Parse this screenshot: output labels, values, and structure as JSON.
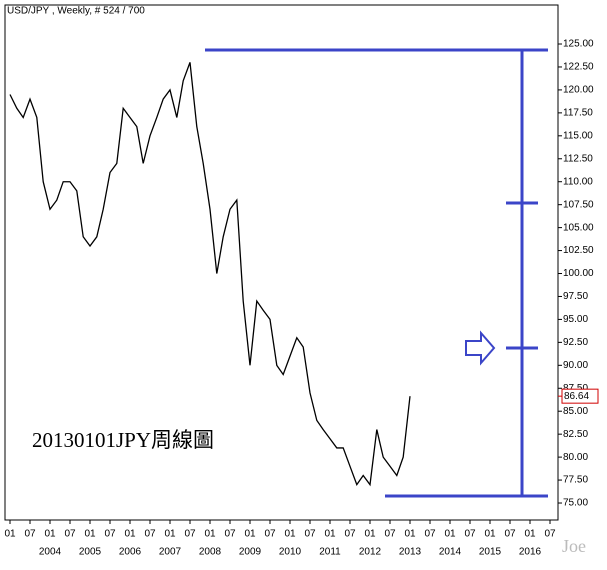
{
  "chart_data": {
    "type": "line",
    "title": "USD/JPY , Weekly, # 524 / 700",
    "annotation": "20130101JPY周線圖",
    "watermark": "Joe",
    "last_value": 86.64,
    "last_value_color": "#d00000",
    "series": [
      {
        "name": "USD/JPY",
        "color": "#000000",
        "x": [
          2003.0,
          2003.17,
          2003.33,
          2003.5,
          2003.67,
          2003.83,
          2004.0,
          2004.17,
          2004.33,
          2004.5,
          2004.67,
          2004.83,
          2005.0,
          2005.17,
          2005.33,
          2005.5,
          2005.67,
          2005.83,
          2006.0,
          2006.17,
          2006.33,
          2006.5,
          2006.67,
          2006.83,
          2007.0,
          2007.17,
          2007.33,
          2007.5,
          2007.67,
          2007.83,
          2008.0,
          2008.17,
          2008.33,
          2008.5,
          2008.67,
          2008.83,
          2009.0,
          2009.17,
          2009.33,
          2009.5,
          2009.67,
          2009.83,
          2010.0,
          2010.17,
          2010.33,
          2010.5,
          2010.67,
          2010.83,
          2011.0,
          2011.17,
          2011.33,
          2011.5,
          2011.67,
          2011.83,
          2012.0,
          2012.17,
          2012.33,
          2012.5,
          2012.67,
          2012.83,
          2013.0
        ],
        "values": [
          119.5,
          118,
          117,
          119,
          117,
          110,
          107,
          108,
          110,
          110,
          109,
          104,
          103,
          104,
          107,
          111,
          112,
          118,
          117,
          116,
          112,
          115,
          117,
          119,
          120,
          117,
          121,
          123,
          116,
          112,
          107,
          100,
          104,
          107,
          108,
          97,
          90,
          97,
          96,
          95,
          90,
          89,
          91,
          93,
          92,
          87,
          84,
          83,
          82,
          81,
          81,
          79,
          77,
          78,
          77,
          83,
          80,
          79,
          78,
          80,
          86.64
        ]
      }
    ],
    "xlim": [
      2002.875,
      2016.7
    ],
    "ylim": [
      73.15,
      129.25
    ],
    "yticks": [
      {
        "value": 75,
        "label": "75.00"
      },
      {
        "value": 77.5,
        "label": "77.50"
      },
      {
        "value": 80,
        "label": "80.00"
      },
      {
        "value": 82.5,
        "label": "82.50"
      },
      {
        "value": 85,
        "label": "85.00"
      },
      {
        "value": 87.5,
        "label": "87.50"
      },
      {
        "value": 90,
        "label": "90.00"
      },
      {
        "value": 92.5,
        "label": "92.50"
      },
      {
        "value": 95,
        "label": "95.00"
      },
      {
        "value": 97.5,
        "label": "97.50"
      },
      {
        "value": 100,
        "label": "100.00"
      },
      {
        "value": 102.5,
        "label": "102.50"
      },
      {
        "value": 105,
        "label": "105.00"
      },
      {
        "value": 107.5,
        "label": "107.50"
      },
      {
        "value": 110,
        "label": "110.00"
      },
      {
        "value": 112.5,
        "label": "112.50"
      },
      {
        "value": 115,
        "label": "115.00"
      },
      {
        "value": 117.5,
        "label": "117.50"
      },
      {
        "value": 120,
        "label": "120.00"
      },
      {
        "value": 122.5,
        "label": "122.50"
      },
      {
        "value": 125,
        "label": "125.00"
      }
    ],
    "xticks": [
      {
        "value": 2003,
        "label": "01"
      },
      {
        "value": 2003.5,
        "label": "07"
      },
      {
        "value": 2004,
        "label": "01"
      },
      {
        "value": 2004.5,
        "label": "07"
      },
      {
        "value": 2005,
        "label": "01"
      },
      {
        "value": 2005.5,
        "label": "07"
      },
      {
        "value": 2006,
        "label": "01"
      },
      {
        "value": 2006.5,
        "label": "07"
      },
      {
        "value": 2007,
        "label": "01"
      },
      {
        "value": 2007.5,
        "label": "07"
      },
      {
        "value": 2008,
        "label": "01"
      },
      {
        "value": 2008.5,
        "label": "07"
      },
      {
        "value": 2009,
        "label": "01"
      },
      {
        "value": 2009.5,
        "label": "07"
      },
      {
        "value": 2010,
        "label": "01"
      },
      {
        "value": 2010.5,
        "label": "07"
      },
      {
        "value": 2011,
        "label": "01"
      },
      {
        "value": 2011.5,
        "label": "07"
      },
      {
        "value": 2012,
        "label": "01"
      },
      {
        "value": 2012.5,
        "label": "07"
      },
      {
        "value": 2013,
        "label": "01"
      },
      {
        "value": 2013.5,
        "label": "07"
      },
      {
        "value": 2014,
        "label": "01"
      },
      {
        "value": 2014.5,
        "label": "07"
      },
      {
        "value": 2015,
        "label": "01"
      },
      {
        "value": 2015.5,
        "label": "07"
      },
      {
        "value": 2016,
        "label": "01"
      },
      {
        "value": 2016.5,
        "label": "07"
      }
    ],
    "year_labels": [
      {
        "value": 2004,
        "label": "2004"
      },
      {
        "value": 2005,
        "label": "2005"
      },
      {
        "value": 2006,
        "label": "2006"
      },
      {
        "value": 2007,
        "label": "2007"
      },
      {
        "value": 2008,
        "label": "2008"
      },
      {
        "value": 2009,
        "label": "2009"
      },
      {
        "value": 2010,
        "label": "2010"
      },
      {
        "value": 2011,
        "label": "2011"
      },
      {
        "value": 2012,
        "label": "2012"
      },
      {
        "value": 2013,
        "label": "2013"
      },
      {
        "value": 2014,
        "label": "2014"
      },
      {
        "value": 2015,
        "label": "2015"
      },
      {
        "value": 2016,
        "label": "2016"
      }
    ]
  }
}
